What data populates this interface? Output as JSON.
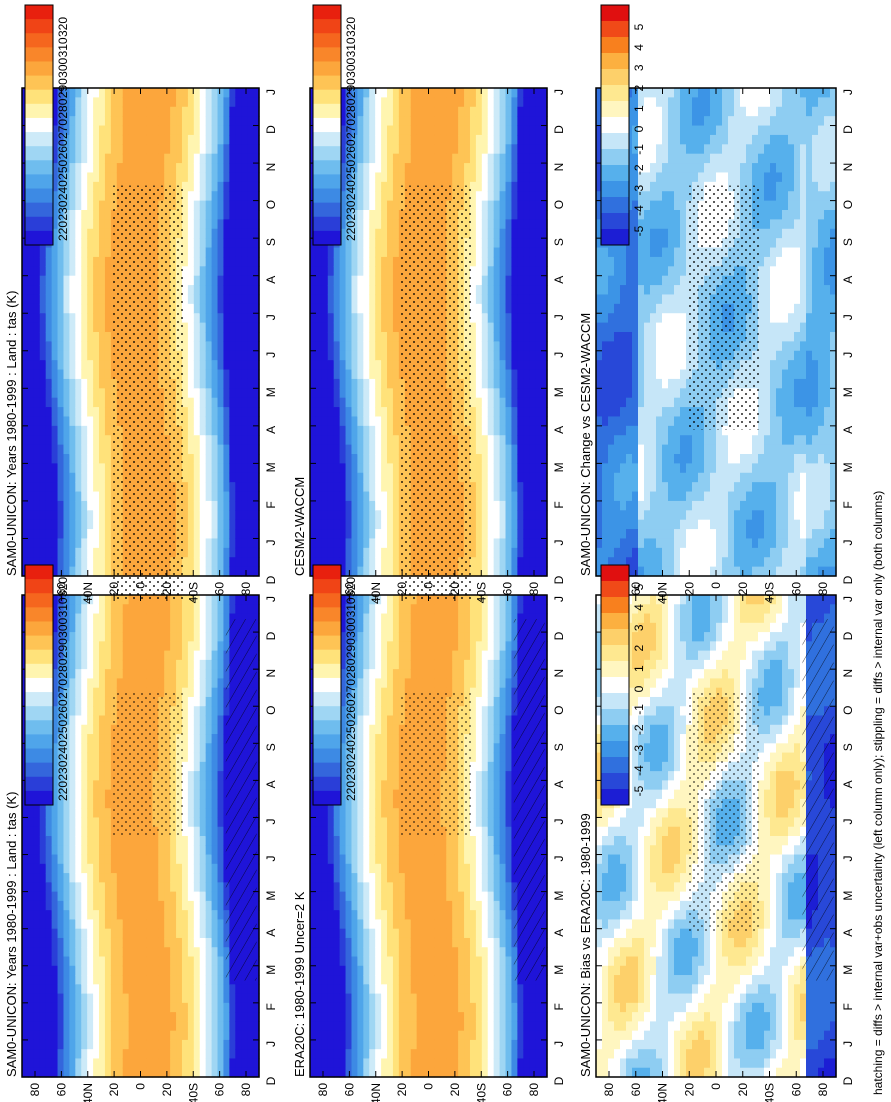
{
  "footnote": "hatching = diffs > internal var+obs uncertainty (left column only); stippling = diffs > internal var only (both columns)",
  "chart_data": [
    {
      "id": "left-top",
      "type": "heatmap",
      "title": "SAM0-UNICON: Years 1980-1999 : Land : tas (K)",
      "x_ticks": [
        "D",
        "J",
        "F",
        "M",
        "A",
        "M",
        "J",
        "J",
        "A",
        "S",
        "O",
        "N",
        "D",
        "J"
      ],
      "y_ticks": [
        "80",
        "60",
        "40N",
        "20",
        "0",
        "20",
        "40S",
        "60",
        "80"
      ],
      "levels": [
        "320",
        "310",
        "300",
        "290",
        "280",
        "270",
        "260",
        "250",
        "240",
        "230",
        "220"
      ],
      "colorbar": "abs",
      "has_hatching": true
    },
    {
      "id": "right-top",
      "type": "heatmap",
      "title": "SAM0-UNICON: Years 1980-1999 : Land : tas (K)",
      "x_ticks": [
        "D",
        "J",
        "F",
        "M",
        "A",
        "M",
        "J",
        "J",
        "A",
        "S",
        "O",
        "N",
        "D",
        "J"
      ],
      "y_ticks": [
        "80",
        "60",
        "40N",
        "20",
        "0",
        "20",
        "40S",
        "60",
        "80"
      ],
      "levels": [
        "320",
        "310",
        "300",
        "290",
        "280",
        "270",
        "260",
        "250",
        "240",
        "230",
        "220"
      ],
      "colorbar": "abs",
      "has_hatching": false
    },
    {
      "id": "left-middle",
      "type": "heatmap",
      "title": "ERA20C: 1980-1999 Uncer=2 K",
      "x_ticks": [
        "D",
        "J",
        "F",
        "M",
        "A",
        "M",
        "J",
        "J",
        "A",
        "S",
        "O",
        "N",
        "D",
        "J"
      ],
      "y_ticks": [
        "80",
        "60",
        "40N",
        "20",
        "0",
        "20",
        "40S",
        "60",
        "80"
      ],
      "levels": [
        "320",
        "310",
        "300",
        "290",
        "280",
        "270",
        "260",
        "250",
        "240",
        "230",
        "220"
      ],
      "colorbar": "abs",
      "has_hatching": true
    },
    {
      "id": "right-middle",
      "type": "heatmap",
      "title": "CESM2-WACCM",
      "x_ticks": [
        "D",
        "J",
        "F",
        "M",
        "A",
        "M",
        "J",
        "J",
        "A",
        "S",
        "O",
        "N",
        "D",
        "J"
      ],
      "y_ticks": [
        "80",
        "60",
        "40N",
        "20",
        "0",
        "20",
        "40S",
        "60",
        "80"
      ],
      "levels": [
        "320",
        "310",
        "300",
        "290",
        "280",
        "270",
        "260",
        "250",
        "240",
        "230",
        "220"
      ],
      "colorbar": "abs",
      "has_hatching": false
    },
    {
      "id": "left-bottom",
      "type": "heatmap",
      "title": "SAM0-UNICON: Bias vs ERA20C: 1980-1999",
      "x_ticks": [
        "D",
        "J",
        "F",
        "M",
        "A",
        "M",
        "J",
        "J",
        "A",
        "S",
        "O",
        "N",
        "D",
        "J"
      ],
      "y_ticks": [
        "80",
        "60",
        "40N",
        "20",
        "0",
        "20",
        "40S",
        "60",
        "80"
      ],
      "levels": [
        "5",
        "4",
        "3",
        "2",
        "1",
        "0",
        "-1",
        "-2",
        "-3",
        "-4",
        "-5"
      ],
      "colorbar": "diff",
      "has_hatching": true
    },
    {
      "id": "right-bottom",
      "type": "heatmap",
      "title": "SAM0-UNICON: Change vs CESM2-WACCM",
      "x_ticks": [
        "D",
        "J",
        "F",
        "M",
        "A",
        "M",
        "J",
        "J",
        "A",
        "S",
        "O",
        "N",
        "D",
        "J"
      ],
      "y_ticks": [
        "80",
        "60",
        "40N",
        "20",
        "0",
        "20",
        "40S",
        "60",
        "80"
      ],
      "levels": [
        "5",
        "4",
        "3",
        "2",
        "1",
        "0",
        "-1",
        "-2",
        "-3",
        "-4",
        "-5"
      ],
      "colorbar": "diff",
      "has_hatching": false
    }
  ],
  "colors": {
    "abs": [
      "#e8200e",
      "#f04416",
      "#f5661e",
      "#f9862a",
      "#fca63c",
      "#fec455",
      "#ffe27a",
      "#fff5b0",
      "#ffffff",
      "#cdeaf8",
      "#9fd6f3",
      "#6fbdee",
      "#4fa5ea",
      "#3d8ae4",
      "#3466dc",
      "#2a3ed8",
      "#1f14d8"
    ],
    "diff": [
      "#e01010",
      "#f04a18",
      "#f8801e",
      "#fcb040",
      "#fdd06a",
      "#fee890",
      "#fff6c0",
      "#ffffff",
      "#c6e6f8",
      "#8ecdf2",
      "#56b0ec",
      "#3c94e6",
      "#3070de",
      "#2848d8",
      "#1c1ed4"
    ]
  }
}
